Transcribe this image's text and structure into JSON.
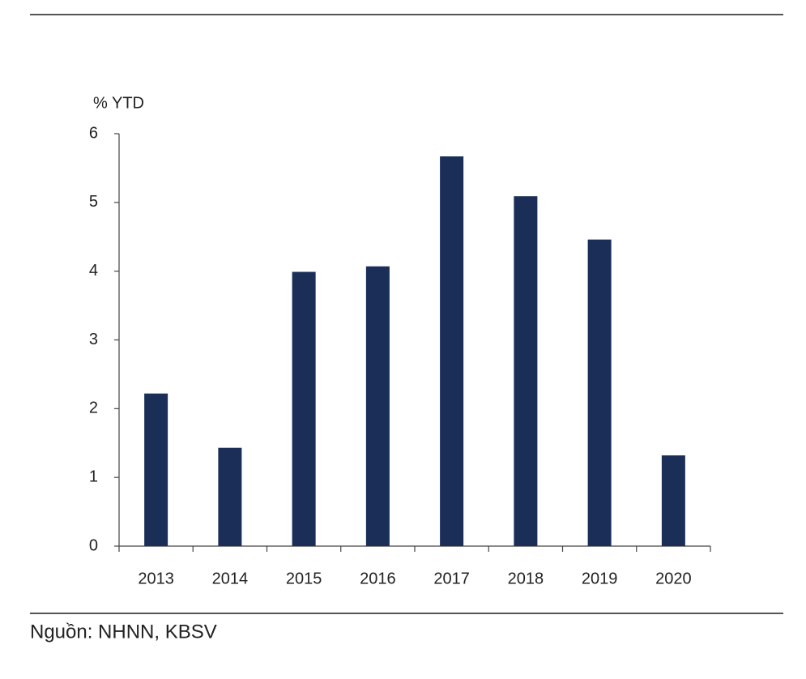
{
  "chart_data": {
    "type": "bar",
    "y_label": "% YTD",
    "categories": [
      "2013",
      "2014",
      "2015",
      "2016",
      "2017",
      "2018",
      "2019",
      "2020"
    ],
    "values": [
      2.22,
      1.43,
      3.99,
      4.07,
      5.67,
      5.09,
      4.46,
      1.32
    ],
    "color": "#1a2e57",
    "ylim": [
      0,
      6
    ],
    "yticks": [
      0,
      1,
      2,
      3,
      4,
      5,
      6
    ],
    "grid": false,
    "source": "Nguồn: NHNN, KBSV"
  }
}
